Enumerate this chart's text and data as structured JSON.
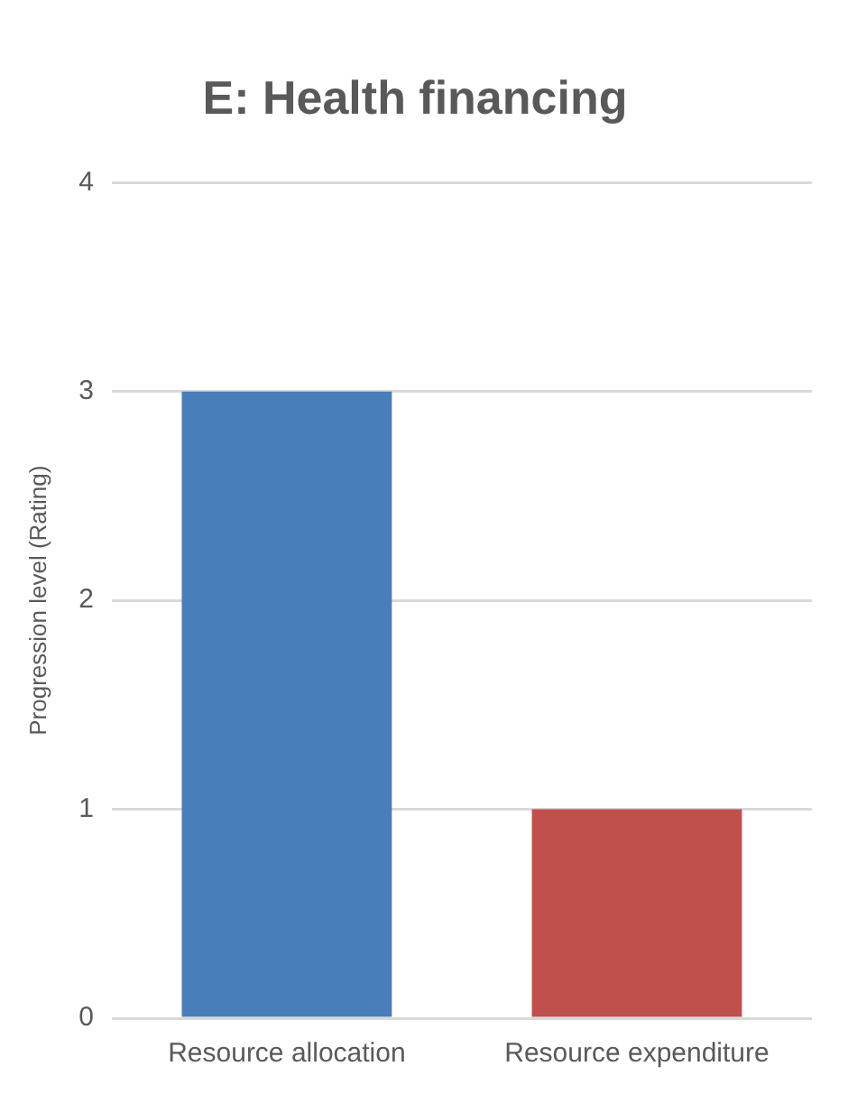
{
  "chart_data": {
    "type": "bar",
    "title": "E: Health financing",
    "ylabel": "Progression level (Rating)",
    "categories": [
      "Resource allocation",
      "Resource expenditure"
    ],
    "values": [
      3,
      1
    ],
    "colors": [
      "#4a7ebb",
      "#c0504d"
    ],
    "ylim": [
      0,
      4
    ],
    "yticks": [
      0,
      1,
      2,
      3,
      4
    ],
    "grid": "y",
    "legend": false
  }
}
